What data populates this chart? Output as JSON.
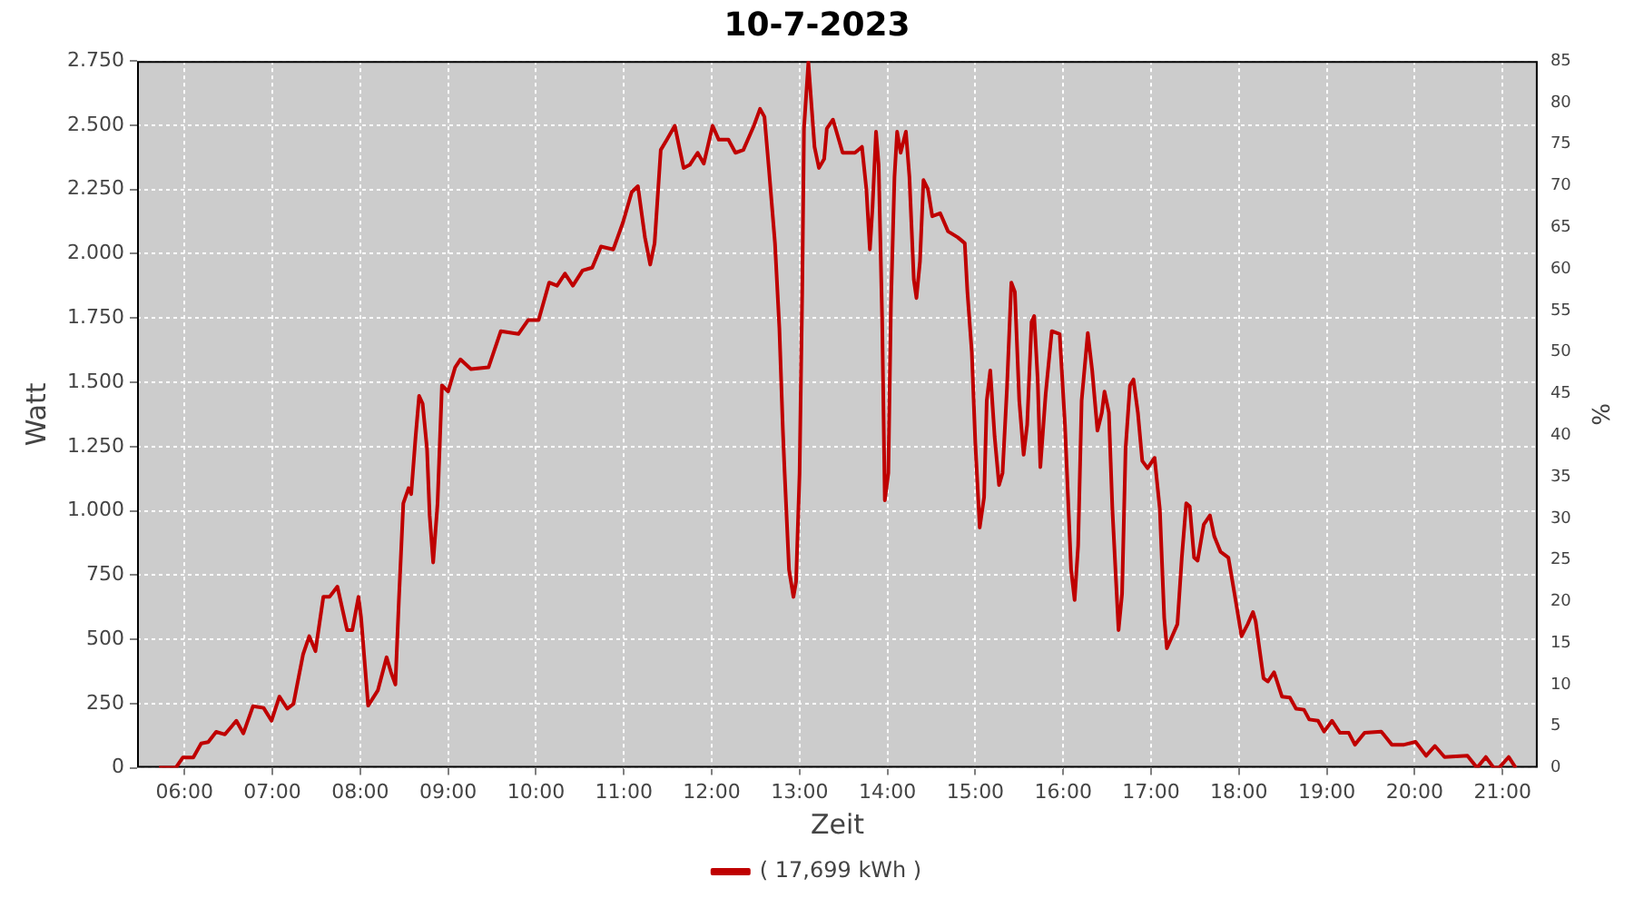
{
  "chart_data": {
    "type": "line",
    "title": "10-7-2023",
    "xlabel": "Zeit",
    "ylabel": "Watt",
    "y2label": "%",
    "xlim": [
      5.46,
      21.4
    ],
    "xticks": [
      {
        "value": 6,
        "label": "06:00"
      },
      {
        "value": 7,
        "label": "07:00"
      },
      {
        "value": 8,
        "label": "08:00"
      },
      {
        "value": 9,
        "label": "09:00"
      },
      {
        "value": 10,
        "label": "10:00"
      },
      {
        "value": 11,
        "label": "11:00"
      },
      {
        "value": 12,
        "label": "12:00"
      },
      {
        "value": 13,
        "label": "13:00"
      },
      {
        "value": 14,
        "label": "14:00"
      },
      {
        "value": 15,
        "label": "15:00"
      },
      {
        "value": 16,
        "label": "16:00"
      },
      {
        "value": 17,
        "label": "17:00"
      },
      {
        "value": 18,
        "label": "18:00"
      },
      {
        "value": 19,
        "label": "19:00"
      },
      {
        "value": 20,
        "label": "20:00"
      },
      {
        "value": 21,
        "label": "21:00"
      }
    ],
    "ylim": [
      0,
      2750
    ],
    "yticks": [
      0,
      250,
      500,
      750,
      {
        "value": 1000,
        "label": "1.000"
      },
      {
        "value": 1250,
        "label": "1.250"
      },
      {
        "value": 1500,
        "label": "1.500"
      },
      {
        "value": 1750,
        "label": "1.750"
      },
      {
        "value": 2000,
        "label": "2.000"
      },
      {
        "value": 2250,
        "label": "2.250"
      },
      {
        "value": 2500,
        "label": "2.500"
      },
      {
        "value": 2750,
        "label": "2.750"
      }
    ],
    "y2lim": [
      0,
      85
    ],
    "y2ticks": [
      0,
      5,
      10,
      15,
      20,
      25,
      30,
      35,
      40,
      45,
      50,
      55,
      60,
      65,
      70,
      75,
      80,
      85
    ],
    "grid": true,
    "legend": "bottom",
    "series": [
      {
        "name": "( 17,699 kWh )",
        "color": "#bf0000",
        "x": [
          5.71,
          5.9,
          5.98,
          6.1,
          6.19,
          6.27,
          6.36,
          6.46,
          6.59,
          6.67,
          6.78,
          6.9,
          6.99,
          7.08,
          7.17,
          7.24,
          7.35,
          7.42,
          7.49,
          7.58,
          7.65,
          7.74,
          7.85,
          7.91,
          7.98,
          8.01,
          8.09,
          8.2,
          8.3,
          8.35,
          8.4,
          8.44,
          8.49,
          8.55,
          8.58,
          8.63,
          8.67,
          8.71,
          8.76,
          8.79,
          8.83,
          8.88,
          8.93,
          9.0,
          9.08,
          9.14,
          9.26,
          9.46,
          9.6,
          9.8,
          9.91,
          10.03,
          10.15,
          10.24,
          10.33,
          10.42,
          10.53,
          10.64,
          10.74,
          10.88,
          10.99,
          11.09,
          11.16,
          11.24,
          11.3,
          11.35,
          11.42,
          11.49,
          11.58,
          11.68,
          11.75,
          11.84,
          11.91,
          12.01,
          12.08,
          12.19,
          12.27,
          12.36,
          12.48,
          12.55,
          12.6,
          12.65,
          12.72,
          12.77,
          12.81,
          12.83,
          12.88,
          12.93,
          12.96,
          13.0,
          13.03,
          13.05,
          13.1,
          13.14,
          13.17,
          13.22,
          13.28,
          13.31,
          13.38,
          13.49,
          13.63,
          13.71,
          13.76,
          13.8,
          13.83,
          13.87,
          13.9,
          13.94,
          13.97,
          14.01,
          14.04,
          14.08,
          14.11,
          14.15,
          14.21,
          14.25,
          14.3,
          14.33,
          14.37,
          14.41,
          14.46,
          14.51,
          14.6,
          14.69,
          14.8,
          14.88,
          14.91,
          14.96,
          15.0,
          15.05,
          15.1,
          15.13,
          15.17,
          15.22,
          15.27,
          15.31,
          15.36,
          15.41,
          15.45,
          15.5,
          15.55,
          15.59,
          15.64,
          15.67,
          15.71,
          15.74,
          15.8,
          15.87,
          15.96,
          16.02,
          16.09,
          16.13,
          16.17,
          16.21,
          16.28,
          16.33,
          16.39,
          16.44,
          16.47,
          16.52,
          16.56,
          16.63,
          16.67,
          16.71,
          16.76,
          16.8,
          16.85,
          16.9,
          16.96,
          17.04,
          17.1,
          17.15,
          17.18,
          17.24,
          17.3,
          17.35,
          17.4,
          17.44,
          17.49,
          17.53,
          17.6,
          17.67,
          17.72,
          17.79,
          17.88,
          17.95,
          18.03,
          18.1,
          18.16,
          18.19,
          18.28,
          18.33,
          18.4,
          18.49,
          18.58,
          18.65,
          18.74,
          18.8,
          18.9,
          18.97,
          19.06,
          19.15,
          19.25,
          19.32,
          19.43,
          19.62,
          19.74,
          19.88,
          20.01,
          20.13,
          20.23,
          20.34,
          20.6,
          20.71,
          20.81,
          20.9,
          20.96,
          21.07,
          21.15
        ],
        "values": [
          0,
          0,
          40,
          40,
          95,
          100,
          140,
          130,
          183,
          134,
          240,
          233,
          183,
          277,
          230,
          249,
          442,
          512,
          454,
          665,
          665,
          705,
          536,
          536,
          665,
          583,
          242,
          301,
          430,
          372,
          324,
          653,
          1029,
          1088,
          1065,
          1288,
          1447,
          1417,
          1241,
          982,
          799,
          1029,
          1488,
          1464,
          1558,
          1589,
          1551,
          1558,
          1699,
          1688,
          1742,
          1742,
          1888,
          1876,
          1923,
          1876,
          1935,
          1946,
          2028,
          2017,
          2122,
          2240,
          2263,
          2064,
          1958,
          2041,
          2404,
          2444,
          2498,
          2334,
          2346,
          2393,
          2351,
          2498,
          2444,
          2444,
          2393,
          2404,
          2498,
          2564,
          2533,
          2334,
          2041,
          1711,
          1312,
          1147,
          771,
          665,
          724,
          1147,
          1852,
          2487,
          2745,
          2557,
          2416,
          2334,
          2369,
          2487,
          2522,
          2393,
          2393,
          2416,
          2252,
          2017,
          2181,
          2475,
          2346,
          1735,
          1041,
          1147,
          1805,
          2299,
          2475,
          2393,
          2475,
          2299,
          1899,
          1828,
          1970,
          2287,
          2252,
          2146,
          2158,
          2087,
          2064,
          2041,
          1852,
          1617,
          1264,
          935,
          1053,
          1429,
          1546,
          1288,
          1100,
          1147,
          1476,
          1888,
          1852,
          1429,
          1218,
          1335,
          1735,
          1758,
          1511,
          1170,
          1452,
          1699,
          1688,
          1335,
          771,
          653,
          865,
          1429,
          1692,
          1546,
          1312,
          1382,
          1464,
          1382,
          1006,
          536,
          677,
          1241,
          1488,
          1511,
          1382,
          1194,
          1166,
          1206,
          1006,
          583,
          465,
          512,
          559,
          818,
          1029,
          1017,
          818,
          806,
          947,
          982,
          900,
          841,
          818,
          677,
          512,
          559,
          606,
          571,
          348,
          336,
          372,
          277,
          273,
          230,
          226,
          188,
          183,
          141,
          183,
          136,
          136,
          90,
          136,
          141,
          90,
          90,
          101,
          47,
          85,
          42,
          47,
          0,
          42,
          0,
          0,
          42,
          0
        ]
      }
    ]
  }
}
